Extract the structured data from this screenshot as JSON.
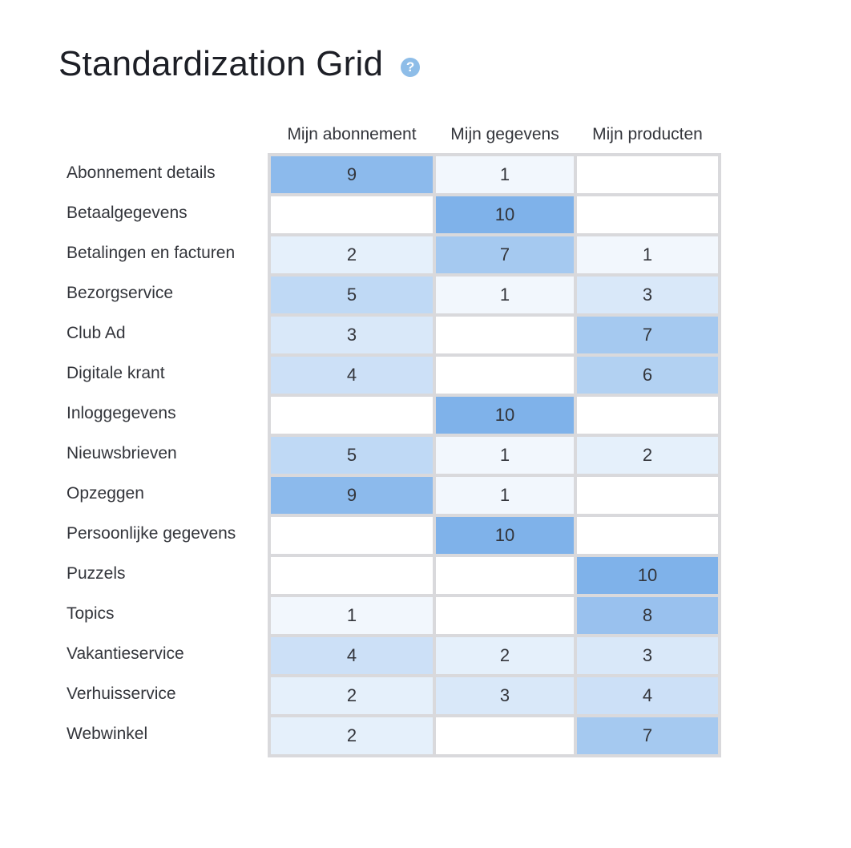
{
  "page": {
    "title": "Standardization Grid",
    "help_glyph": "?"
  },
  "columns": [
    "Mijn abonnement",
    "Mijn gegevens",
    "Mijn producten"
  ],
  "rows": [
    {
      "label": "Abonnement details",
      "values": [
        "9",
        "1",
        ""
      ]
    },
    {
      "label": "Betaalgegevens",
      "values": [
        "",
        "10",
        ""
      ]
    },
    {
      "label": "Betalingen en facturen",
      "values": [
        "2",
        "7",
        "1"
      ]
    },
    {
      "label": "Bezorgservice",
      "values": [
        "5",
        "1",
        "3"
      ]
    },
    {
      "label": "Club Ad",
      "values": [
        "3",
        "",
        "7"
      ]
    },
    {
      "label": "Digitale krant",
      "values": [
        "4",
        "",
        "6"
      ]
    },
    {
      "label": "Inloggegevens",
      "values": [
        "",
        "10",
        ""
      ]
    },
    {
      "label": "Nieuwsbrieven",
      "values": [
        "5",
        "1",
        "2"
      ]
    },
    {
      "label": "Opzeggen",
      "values": [
        "9",
        "1",
        ""
      ]
    },
    {
      "label": "Persoonlijke gegevens",
      "values": [
        "",
        "10",
        ""
      ]
    },
    {
      "label": "Puzzels",
      "values": [
        "",
        "",
        "10"
      ]
    },
    {
      "label": "Topics",
      "values": [
        "1",
        "",
        "8"
      ]
    },
    {
      "label": "Vakantieservice",
      "values": [
        "4",
        "2",
        "3"
      ]
    },
    {
      "label": "Verhuisservice",
      "values": [
        "2",
        "3",
        "4"
      ]
    },
    {
      "label": "Webwinkel",
      "values": [
        "2",
        "",
        "7"
      ]
    }
  ],
  "colors": {
    "accent": "#8ebde8",
    "cell_max": "#7fb2ea",
    "cell_min": "#ffffff",
    "grid_border": "#d9d9dc"
  },
  "icons": {
    "help": "help-circle-icon"
  }
}
